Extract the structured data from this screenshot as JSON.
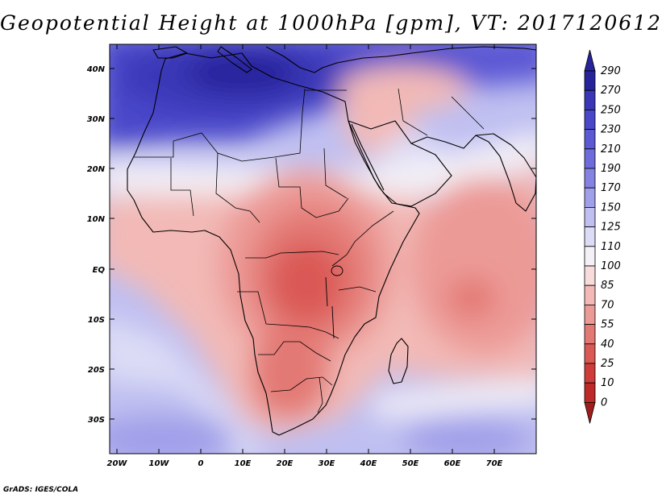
{
  "title": "Geopotential Height at 1000hPa [gpm], VT: 2017120612",
  "credit": "GrADS: IGES/COLA",
  "map": {
    "lat_labels": [
      "40N",
      "30N",
      "20N",
      "10N",
      "EQ",
      "10S",
      "20S",
      "30S"
    ],
    "lon_labels": [
      "20W",
      "10W",
      "0",
      "10E",
      "20E",
      "30E",
      "40E",
      "50E",
      "60E",
      "70E"
    ]
  },
  "colorbar": {
    "levels": [
      "290",
      "270",
      "250",
      "230",
      "210",
      "190",
      "170",
      "150",
      "125",
      "110",
      "100",
      "85",
      "70",
      "55",
      "40",
      "25",
      "10",
      "0"
    ],
    "colors": [
      "#27239b",
      "#3a37b7",
      "#4a47c9",
      "#5c59d4",
      "#6e6bdc",
      "#8583e2",
      "#a09fe9",
      "#bfbff1",
      "#dcdcf6",
      "#f3f0f6",
      "#f8dcdc",
      "#f2b9b6",
      "#ec9a96",
      "#e37975",
      "#da5955",
      "#cf3d3a",
      "#bd2a28",
      "#a01c1c"
    ]
  }
}
